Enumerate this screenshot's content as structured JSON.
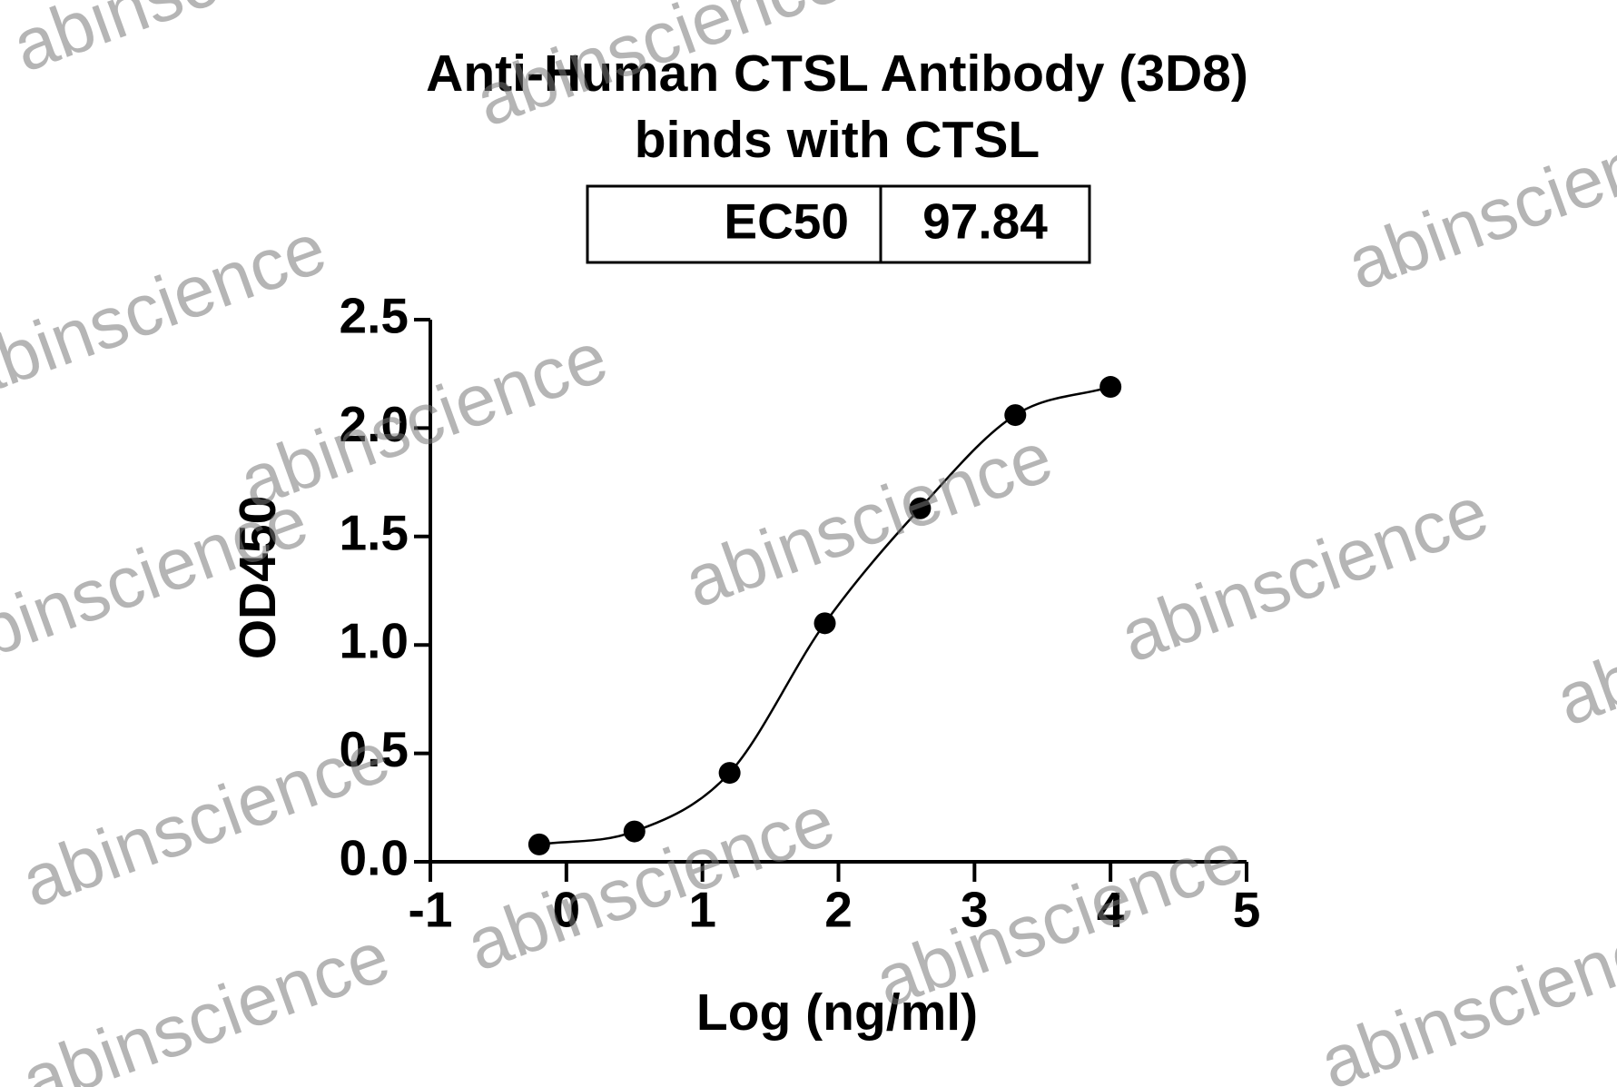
{
  "chart_data": {
    "type": "scatter",
    "title": [
      "Anti-Human CTSL Antibody (3D8)",
      "binds with CTSL"
    ],
    "table": {
      "rows": [
        [
          "EC50",
          "97.84"
        ]
      ]
    },
    "x_label": "Log (ng/ml)",
    "y_label": "OD450",
    "x": [
      -0.2,
      0.5,
      1.2,
      1.9,
      2.6,
      3.3,
      4.0
    ],
    "values": [
      0.08,
      0.14,
      0.41,
      1.1,
      1.63,
      2.06,
      2.19
    ],
    "color": "#000000",
    "fit_line": true,
    "xlim": [
      -1,
      5
    ],
    "xticks": [
      -1,
      0,
      1,
      2,
      3,
      4,
      5
    ],
    "ylim": [
      0,
      2.5
    ],
    "yticks": [
      {
        "value": 0,
        "label": "0.0"
      },
      0.5,
      {
        "value": 1,
        "label": "1.0"
      },
      1.5,
      {
        "value": 2,
        "label": "2.0"
      },
      2.5
    ],
    "watermark": "abinscience"
  }
}
